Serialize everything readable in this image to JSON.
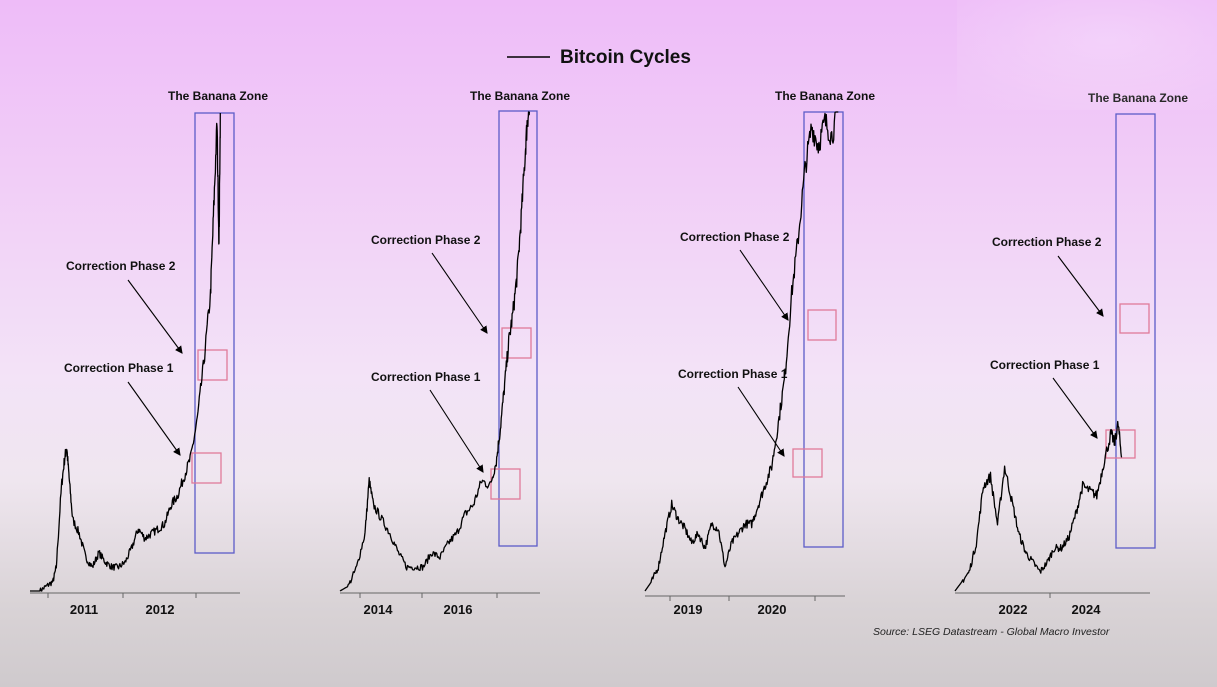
{
  "chart_data": {
    "type": "line",
    "title": "Bitcoin Cycles",
    "source": "Source: LSEG Datastream - Global Macro Investor",
    "legend": {
      "position": "top-center",
      "series_name": "Bitcoin Cycles"
    },
    "colors": {
      "line": "#000000",
      "banana_box": "#5c5cc8",
      "correction_box": "#e07a9a",
      "arrow": "#000000"
    },
    "grid": false,
    "panels": [
      {
        "tick_labels": [
          "2011",
          "2012"
        ],
        "zone_label": "The Banana Zone",
        "annotations": [
          "Correction Phase 2",
          "Correction Phase 1"
        ],
        "xlim": [
          2010.3,
          2013.5
        ],
        "ylim": [
          0,
          1
        ],
        "series": [
          {
            "x": [
              2010.3,
              2010.45,
              2010.55,
              2010.65,
              2010.7,
              2010.78,
              2010.83,
              2010.86,
              2010.9,
              2010.95,
              2011.05,
              2011.15,
              2011.25,
              2011.35,
              2011.45,
              2011.55,
              2011.65,
              2011.75,
              2011.85,
              2011.95,
              2012.05,
              2012.15,
              2012.25,
              2012.35,
              2012.45,
              2012.55,
              2012.65,
              2012.75,
              2012.85,
              2012.95,
              2013.05,
              2013.1,
              2013.15,
              2013.18,
              2013.2
            ],
            "y": [
              0.0,
              0.0,
              0.01,
              0.02,
              0.05,
              0.22,
              0.28,
              0.3,
              0.23,
              0.15,
              0.12,
              0.07,
              0.05,
              0.08,
              0.06,
              0.05,
              0.05,
              0.06,
              0.09,
              0.13,
              0.11,
              0.12,
              0.13,
              0.14,
              0.18,
              0.2,
              0.24,
              0.28,
              0.36,
              0.48,
              0.62,
              0.8,
              0.98,
              0.72,
              1.0
            ]
          }
        ],
        "banana_zone_x": [
          2012.95,
          2013.45
        ],
        "correction_boxes": [
          {
            "x": [
              2012.95,
              2013.3
            ],
            "y": [
              0.25,
              0.33
            ]
          },
          {
            "x": [
              2012.95,
              2013.3
            ],
            "y": [
              0.47,
              0.55
            ]
          }
        ]
      },
      {
        "tick_labels": [
          "2014",
          "2016"
        ],
        "zone_label": "The Banana Zone",
        "annotations": [
          "Correction Phase 2",
          "Correction Phase 1"
        ],
        "xlim": [
          2013.2,
          2018.0
        ],
        "ylim": [
          0,
          1
        ],
        "series": [
          {
            "x": [
              2013.2,
              2013.4,
              2013.6,
              2013.8,
              2013.9,
              2014.0,
              2014.2,
              2014.4,
              2014.6,
              2014.8,
              2015.0,
              2015.2,
              2015.4,
              2015.6,
              2015.8,
              2016.0,
              2016.2,
              2016.4,
              2016.6,
              2016.8,
              2016.95,
              2017.05,
              2017.15,
              2017.25,
              2017.35,
              2017.45,
              2017.55,
              2017.65,
              2017.7,
              2017.75
            ],
            "y": [
              0.0,
              0.01,
              0.05,
              0.12,
              0.23,
              0.18,
              0.15,
              0.12,
              0.08,
              0.05,
              0.05,
              0.05,
              0.08,
              0.07,
              0.1,
              0.12,
              0.16,
              0.18,
              0.23,
              0.22,
              0.27,
              0.34,
              0.43,
              0.52,
              0.58,
              0.66,
              0.78,
              0.92,
              0.99,
              1.0
            ]
          }
        ],
        "banana_zone_x": [
          2017.0,
          2017.95
        ],
        "correction_boxes": [
          {
            "x": [
              2017.0,
              2017.3
            ],
            "y": [
              0.3,
              0.38
            ]
          },
          {
            "x": [
              2017.15,
              2017.55
            ],
            "y": [
              0.47,
              0.55
            ]
          }
        ]
      },
      {
        "tick_labels": [
          "2019",
          "2020"
        ],
        "zone_label": "The Banana Zone",
        "annotations": [
          "Correction Phase 2",
          "Correction Phase 1"
        ],
        "xlim": [
          2018.3,
          2021.3
        ],
        "ylim": [
          0,
          1
        ],
        "series": [
          {
            "x": [
              2018.3,
              2018.4,
              2018.5,
              2018.6,
              2018.7,
              2018.8,
              2018.9,
              2019.0,
              2019.1,
              2019.2,
              2019.3,
              2019.4,
              2019.5,
              2019.6,
              2019.7,
              2019.8,
              2019.9,
              2020.0,
              2020.1,
              2020.2,
              2020.3,
              2020.4,
              2020.5,
              2020.6,
              2020.7,
              2020.8,
              2020.9,
              2021.0,
              2021.1,
              2021.2
            ],
            "y": [
              0.0,
              0.02,
              0.05,
              0.12,
              0.18,
              0.15,
              0.13,
              0.1,
              0.12,
              0.09,
              0.14,
              0.13,
              0.05,
              0.1,
              0.12,
              0.14,
              0.14,
              0.18,
              0.22,
              0.26,
              0.35,
              0.45,
              0.62,
              0.74,
              0.88,
              0.97,
              0.93,
              0.98,
              0.95,
              1.0
            ]
          }
        ],
        "banana_zone_x": [
          2020.45,
          2021.25
        ],
        "correction_boxes": [
          {
            "x": [
              2020.3,
              2020.55
            ],
            "y": [
              0.3,
              0.36
            ]
          },
          {
            "x": [
              2020.45,
              2020.75
            ],
            "y": [
              0.58,
              0.65
            ]
          }
        ]
      },
      {
        "tick_labels": [
          "2022",
          "2024"
        ],
        "zone_label": "The Banana Zone",
        "annotations": [
          "Correction Phase 2",
          "Correction Phase 1"
        ],
        "xlim": [
          2020.5,
          2026.0
        ],
        "ylim": [
          0,
          1
        ],
        "series": [
          {
            "x": [
              2020.5,
              2020.7,
              2020.9,
              2021.1,
              2021.3,
              2021.5,
              2021.7,
              2021.9,
              2022.1,
              2022.3,
              2022.5,
              2022.7,
              2022.9,
              2023.1,
              2023.3,
              2023.5,
              2023.7,
              2023.9,
              2024.1,
              2024.3,
              2024.5,
              2024.7,
              2024.9,
              2025.0,
              2025.1,
              2025.2
            ],
            "y": [
              0.0,
              0.02,
              0.04,
              0.1,
              0.22,
              0.24,
              0.14,
              0.26,
              0.19,
              0.12,
              0.08,
              0.06,
              0.04,
              0.06,
              0.09,
              0.09,
              0.11,
              0.16,
              0.22,
              0.21,
              0.2,
              0.27,
              0.33,
              0.31,
              0.35,
              0.28
            ]
          }
        ],
        "banana_zone_x": [
          2025.05,
          2026.0
        ],
        "correction_boxes": [
          {
            "x": [
              2024.9,
              2025.35
            ],
            "y": [
              0.31,
              0.37
            ]
          },
          {
            "x": [
              2025.2,
              2025.8
            ],
            "y": [
              0.55,
              0.61
            ]
          }
        ]
      }
    ]
  }
}
